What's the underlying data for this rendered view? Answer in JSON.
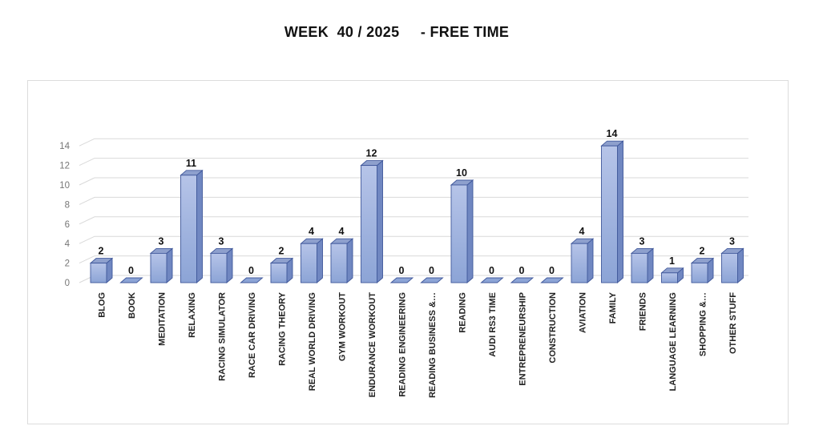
{
  "page": {
    "title": "WEEK  40 / 2025     - FREE TIME"
  },
  "chart_data": {
    "type": "bar",
    "style": "3d-clustered-column",
    "title": "WEEK  40 / 2025     - FREE TIME",
    "categories": [
      "BLOG",
      "BOOK",
      "MEDITATION",
      "RELAXING",
      "RACING SIMULATOR",
      "RACE CAR DRIVING",
      "RACING THEORY",
      "REAL WORLD DRIVING",
      "GYM WORKOUT",
      "ENDURANCE WORKOUT",
      "READING ENGINEERING",
      "READING BUSINESS &…",
      "READING",
      "AUDI RS3 TIME",
      "ENTREPRENEURSHIP",
      "CONSTRUCTION",
      "AVIATION",
      "FAMILY",
      "FRIENDS",
      "LANGUAGE LEARNING",
      "SHOPPING &…",
      "OTHER STUFF"
    ],
    "values": [
      2,
      0,
      3,
      11,
      3,
      0,
      2,
      4,
      4,
      12,
      0,
      0,
      10,
      0,
      0,
      0,
      4,
      14,
      3,
      1,
      2,
      3
    ],
    "data_labels": [
      2,
      0,
      3,
      11,
      3,
      0,
      2,
      4,
      4,
      12,
      0,
      0,
      10,
      0,
      0,
      0,
      4,
      14,
      3,
      1,
      2,
      3
    ],
    "xlabel": "",
    "ylabel": "",
    "ylim": [
      0,
      14
    ],
    "yticks": [
      0,
      2,
      4,
      6,
      8,
      10,
      12,
      14
    ],
    "grid": true,
    "legend": false,
    "colors": {
      "bar_front_top": "#b6c4e8",
      "bar_front_bottom": "#8ca4d6",
      "bar_top_face": "#8ea0cd",
      "bar_side_face": "#7087c1",
      "bar_border": "#40589b",
      "zero_slab": "#8ca4d6",
      "gridline": "#d9d9d9",
      "axis_tick_label": "#767676",
      "category_label": "#222222",
      "data_label": "#111111",
      "chart_border": "#dcdcdc",
      "title": "#111111"
    }
  }
}
